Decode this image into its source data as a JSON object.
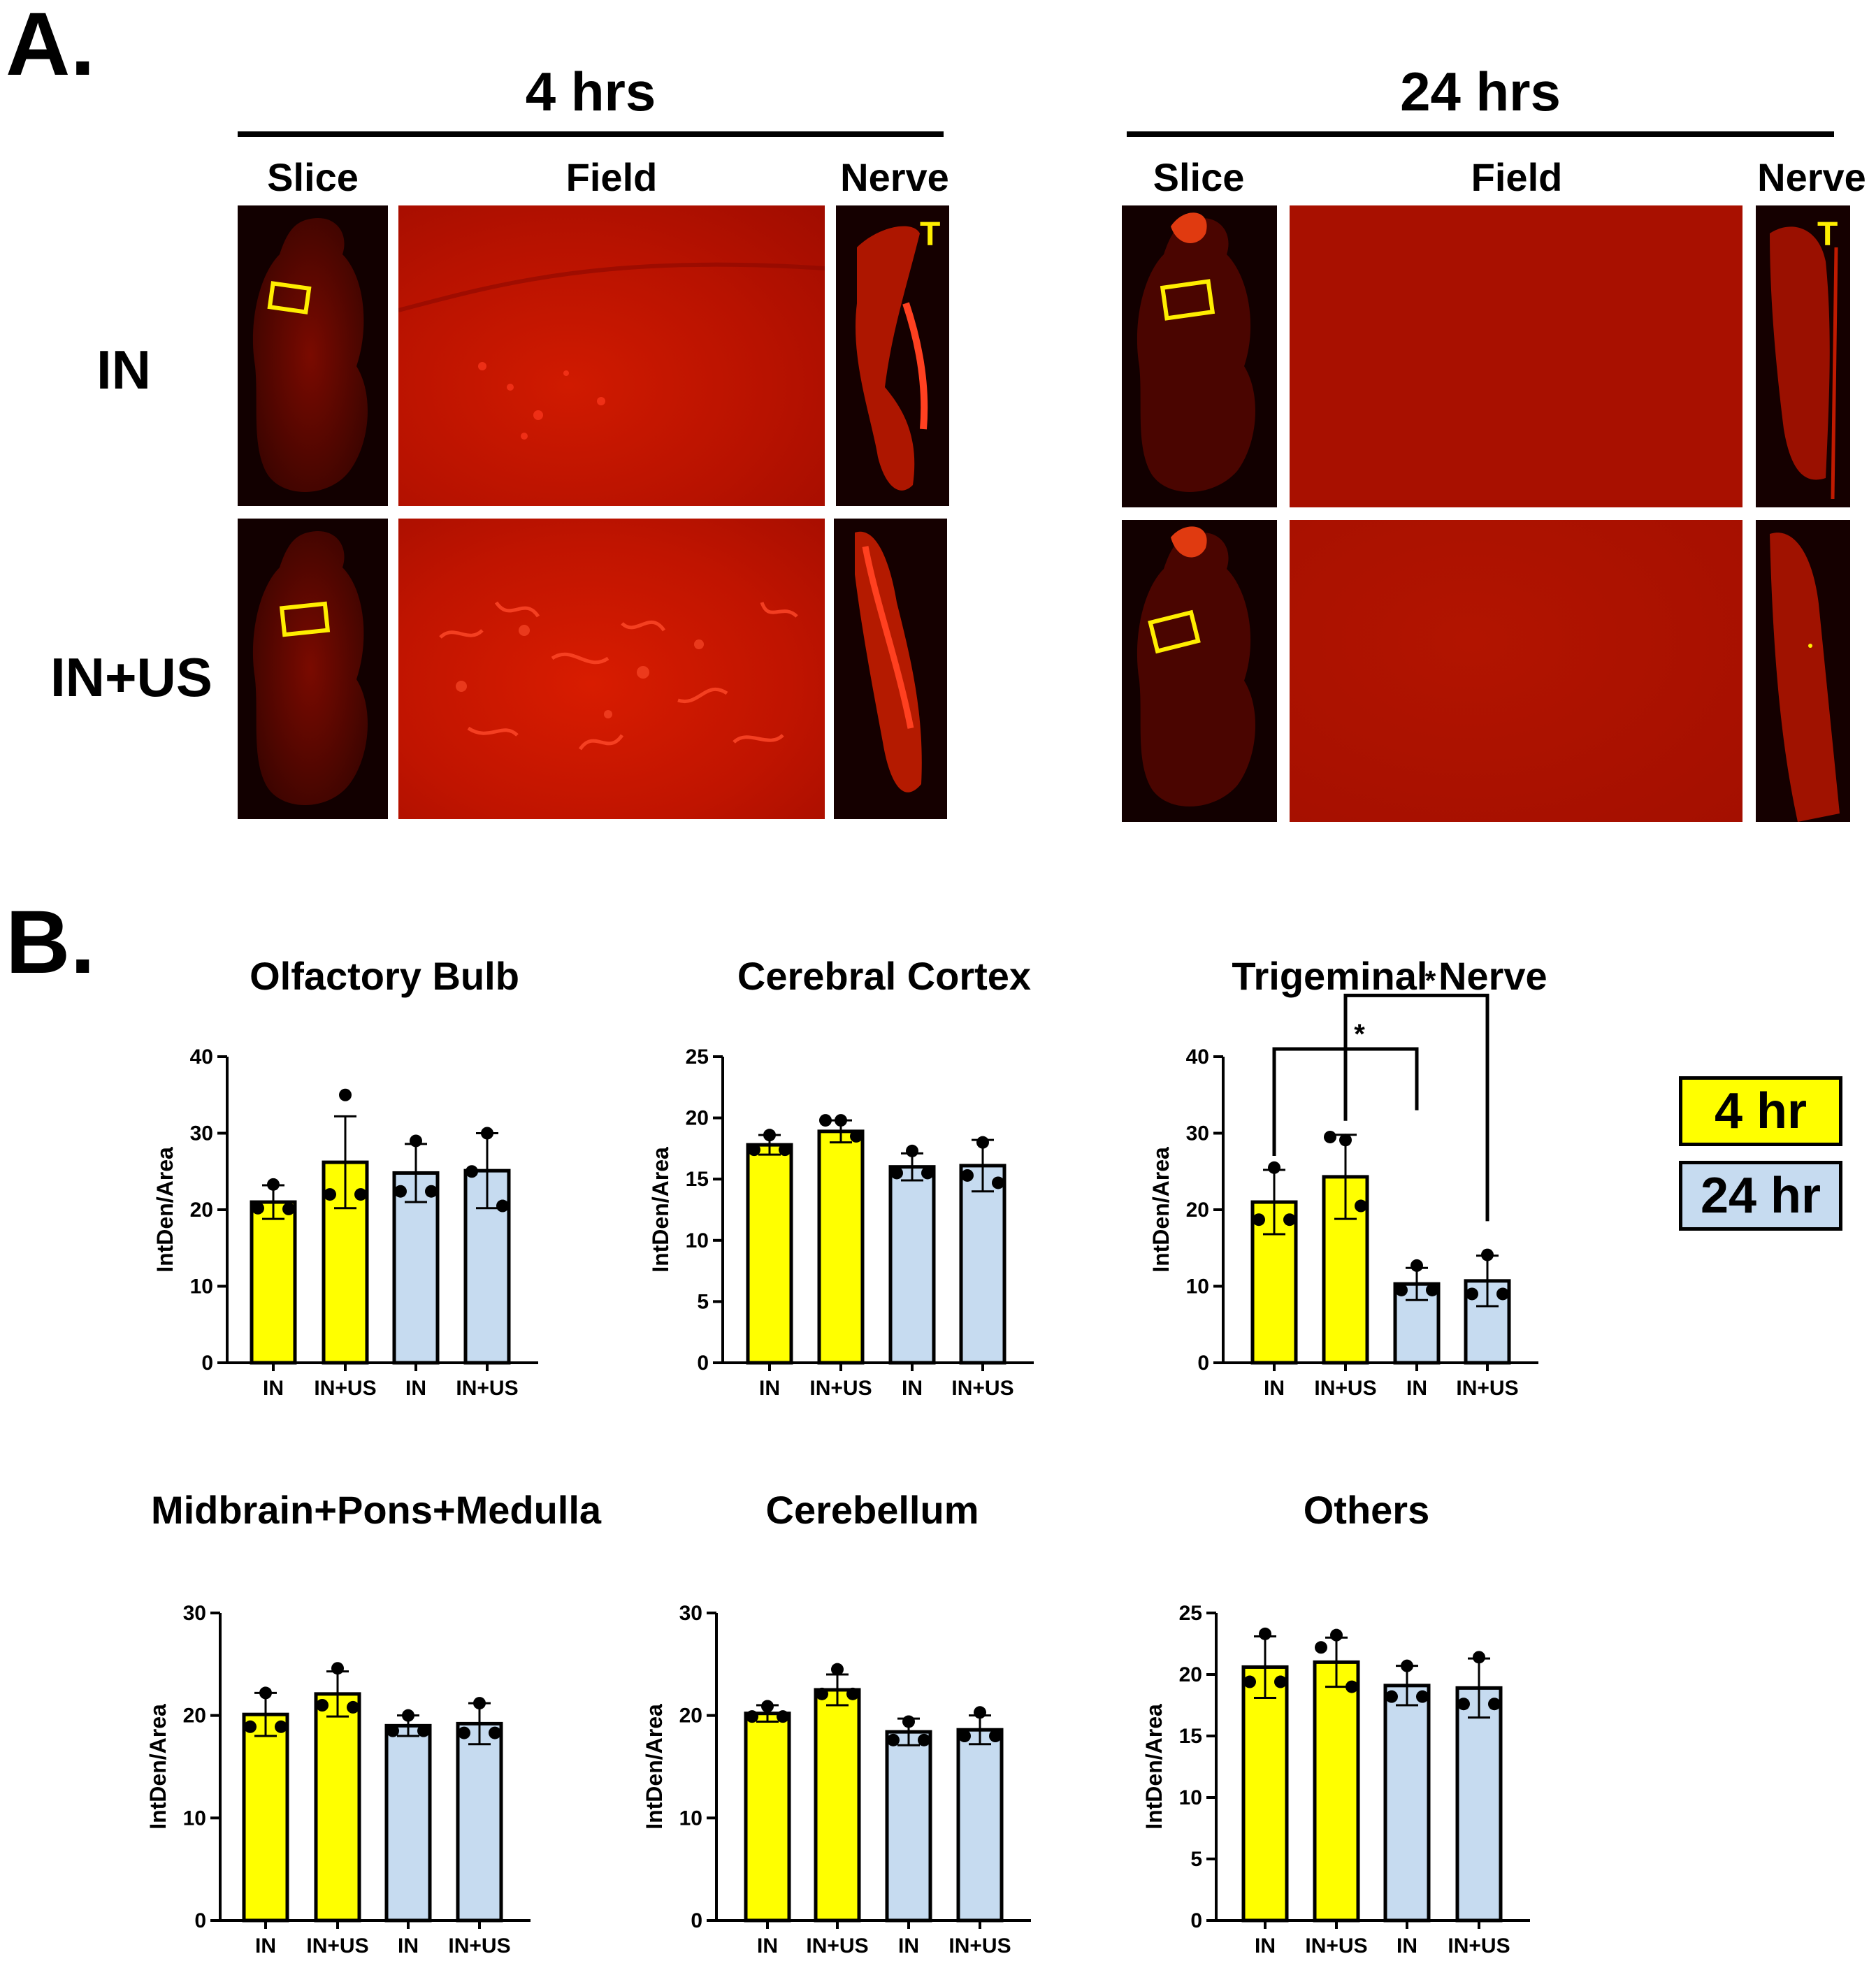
{
  "panel_a": {
    "letter": "A.",
    "groups": [
      {
        "title": "4 hrs",
        "columns": [
          "Slice",
          "Field",
          "Nerve"
        ],
        "nerve_mark": "T"
      },
      {
        "title": "24 hrs",
        "columns": [
          "Slice",
          "Field",
          "Nerve"
        ],
        "nerve_mark": "T"
      }
    ],
    "rows": [
      "IN",
      "IN+US"
    ],
    "colors": {
      "roi": "#ffee00",
      "tissue": "#b01000",
      "background": "#1a0000"
    }
  },
  "panel_b": {
    "letter": "B.",
    "legend": [
      {
        "label": "4 hr",
        "color": "#ffff00"
      },
      {
        "label": "24 hr",
        "color": "#c6dbf0"
      }
    ]
  },
  "chart_data": [
    {
      "type": "bar",
      "title": "Olfactory Bulb",
      "ylabel": "IntDen/Area",
      "ylim": [
        0,
        40
      ],
      "yticks": [
        "0",
        "10",
        "20",
        "30",
        "40"
      ],
      "categories": [
        "IN",
        "IN+US",
        "IN",
        "IN+US"
      ],
      "values": [
        21,
        26.2,
        24.8,
        25.1
      ],
      "errors": [
        2.2,
        6,
        3.8,
        4.9
      ],
      "points": [
        [
          23.3,
          20.2,
          20.1
        ],
        [
          35,
          22,
          22
        ],
        [
          29,
          22.4,
          22.4
        ],
        [
          30,
          25,
          20.5
        ]
      ],
      "bar_colors": [
        "#ffff00",
        "#ffff00",
        "#c6dbf0",
        "#c6dbf0"
      ]
    },
    {
      "type": "bar",
      "title": "Cerebral Cortex",
      "ylabel": "IntDen/Area",
      "ylim": [
        0,
        25
      ],
      "yticks": [
        "0",
        "5",
        "10",
        "15",
        "20",
        "25"
      ],
      "categories": [
        "IN",
        "IN+US",
        "IN",
        "IN+US"
      ],
      "values": [
        17.8,
        18.9,
        16,
        16.1
      ],
      "errors": [
        0.8,
        0.9,
        1.1,
        2.1
      ],
      "points": [
        [
          18.6,
          17.4,
          17.4
        ],
        [
          19.8,
          19.8,
          18.5
        ],
        [
          17.3,
          15.5,
          15.5
        ],
        [
          18,
          15.3,
          14.7
        ]
      ],
      "bar_colors": [
        "#ffff00",
        "#ffff00",
        "#c6dbf0",
        "#c6dbf0"
      ]
    },
    {
      "type": "bar",
      "title": "Trigeminal Nerve",
      "ylabel": "IntDen/Area",
      "ylim": [
        0,
        40
      ],
      "yticks": [
        "0",
        "10",
        "20",
        "30",
        "40"
      ],
      "categories": [
        "IN",
        "IN+US",
        "IN",
        "IN+US"
      ],
      "values": [
        21,
        24.3,
        10.3,
        10.7
      ],
      "errors": [
        4.2,
        5.5,
        2.1,
        3.3
      ],
      "points": [
        [
          25.5,
          18.7,
          18.7
        ],
        [
          29.1,
          29.5,
          20.5
        ],
        [
          12.7,
          9.5,
          9.5
        ],
        [
          14.1,
          9,
          9
        ]
      ],
      "bar_colors": [
        "#ffff00",
        "#ffff00",
        "#c6dbf0",
        "#c6dbf0"
      ],
      "annotations": [
        {
          "from": 0,
          "to": 2,
          "label": "*"
        },
        {
          "from": 1,
          "to": 3,
          "label": "*"
        }
      ]
    },
    {
      "type": "bar",
      "title": "Midbrain+Pons+Medulla",
      "ylabel": "IntDen/Area",
      "ylim": [
        0,
        30
      ],
      "yticks": [
        "0",
        "10",
        "20",
        "30"
      ],
      "categories": [
        "IN",
        "IN+US",
        "IN",
        "IN+US"
      ],
      "values": [
        20.1,
        22.1,
        19,
        19.2
      ],
      "errors": [
        2.1,
        2.2,
        1,
        2
      ],
      "points": [
        [
          22.2,
          18.9,
          18.9
        ],
        [
          24.6,
          21,
          20.8
        ],
        [
          20,
          18.5,
          18.5
        ],
        [
          21.2,
          18.3,
          18.3
        ]
      ],
      "bar_colors": [
        "#ffff00",
        "#ffff00",
        "#c6dbf0",
        "#c6dbf0"
      ]
    },
    {
      "type": "bar",
      "title": "Cerebellum",
      "ylabel": "IntDen/Area",
      "ylim": [
        0,
        30
      ],
      "yticks": [
        "0",
        "10",
        "20",
        "30"
      ],
      "categories": [
        "IN",
        "IN+US",
        "IN",
        "IN+US"
      ],
      "values": [
        20.2,
        22.5,
        18.4,
        18.6
      ],
      "errors": [
        0.8,
        1.5,
        1.3,
        1.4
      ],
      "points": [
        [
          20.9,
          19.9,
          19.9
        ],
        [
          24.5,
          22.1,
          22.1
        ],
        [
          19.4,
          17.6,
          17.6
        ],
        [
          20.3,
          18,
          18
        ]
      ],
      "bar_colors": [
        "#ffff00",
        "#ffff00",
        "#c6dbf0",
        "#c6dbf0"
      ]
    },
    {
      "type": "bar",
      "title": "Others",
      "ylabel": "IntDen/Area",
      "ylim": [
        0,
        25
      ],
      "yticks": [
        "0",
        "5",
        "10",
        "15",
        "20",
        "25"
      ],
      "categories": [
        "IN",
        "IN+US",
        "IN",
        "IN+US"
      ],
      "values": [
        20.6,
        21,
        19.1,
        18.9
      ],
      "errors": [
        2.5,
        2,
        1.6,
        2.4
      ],
      "points": [
        [
          23.3,
          19.4,
          19.4
        ],
        [
          23.2,
          22.2,
          19
        ],
        [
          20.7,
          18.2,
          18.2
        ],
        [
          21.4,
          17.6,
          17.6
        ]
      ],
      "bar_colors": [
        "#ffff00",
        "#ffff00",
        "#c6dbf0",
        "#c6dbf0"
      ]
    }
  ]
}
